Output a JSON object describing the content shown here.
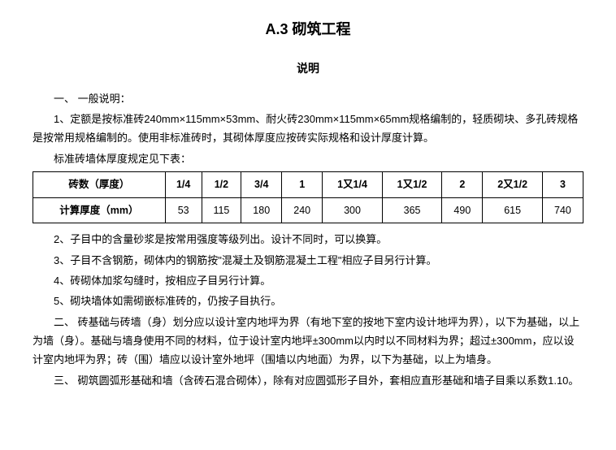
{
  "title": "A.3  砌筑工程",
  "subtitle": "说明",
  "section1_heading": "一、  一般说明：",
  "para1": "1、定额是按标准砖240mm×115mm×53mm、耐火砖230mm×115mm×65mm规格编制的，轻质砌块、多孔砖规格是按常用规格编制的。使用非标准砖时，其砌体厚度应按砖实际规格和设计厚度计算。",
  "table_intro": "标准砖墙体厚度规定见下表：",
  "table": {
    "header_row_label": "砖数（厚度）",
    "header_values": [
      "1/4",
      "1/2",
      "3/4",
      "1",
      "1又1/4",
      "1又1/2",
      "2",
      "2又1/2",
      "3"
    ],
    "data_row_label": "计算厚度（mm）",
    "data_values": [
      "53",
      "115",
      "180",
      "240",
      "300",
      "365",
      "490",
      "615",
      "740"
    ]
  },
  "para2": "2、子目中的含量砂浆是按常用强度等级列出。设计不同时，可以换算。",
  "para3": "3、子目不含钢筋，砌体内的钢筋按\"混凝土及钢筋混凝土工程\"相应子目另行计算。",
  "para4": "4、砖砌体加浆勾缝时，按相应子目另行计算。",
  "para5": "5、砌块墙体如需砌嵌标准砖的，仍按子目执行。",
  "section2": "二、  砖基础与砖墙（身）划分应以设计室内地坪为界（有地下室的按地下室内设计地坪为界），以下为基础，以上为墙（身）。基础与墙身使用不同的材料，位于设计室内地坪±300mm以内时以不同材料为界；超过±300mm，应以设计室内地坪为界；砖（围）墙应以设计室外地坪（围墙以内地面）为界，以下为基础，以上为墙身。",
  "section3": "三、  砌筑圆弧形基础和墙（含砖石混合砌体），除有对应圆弧形子目外，套相应直形基础和墙子目乘以系数1.10。"
}
